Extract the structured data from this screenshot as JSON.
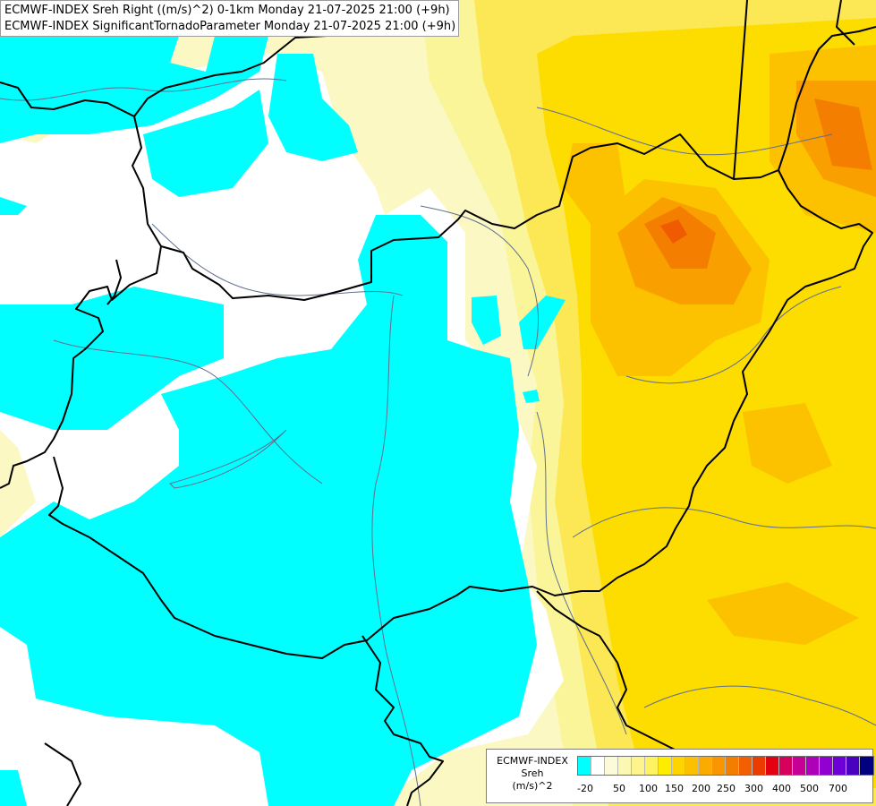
{
  "header": {
    "line1": "ECMWF-INDEX Sreh Right ((m/s)^2) 0-1km Monday 21-07-2025 21:00 (+9h)",
    "line2": "ECMWF-INDEX SignificantTornadoParameter Monday 21-07-2025 21:00 (+9h)"
  },
  "legend": {
    "title_line1": "ECMWF-INDEX",
    "title_line2": "Sreh",
    "title_line3": "(m/s)^2",
    "colors": [
      "#00ffff",
      "#ffffff",
      "#fdfbd7",
      "#fcf8b3",
      "#fdf58c",
      "#fef262",
      "#ffed00",
      "#fdd400",
      "#fcc000",
      "#fbab00",
      "#f89500",
      "#f47d00",
      "#f15f00",
      "#ea3b00",
      "#e30010",
      "#d6005c",
      "#c60094",
      "#ad00b8",
      "#8f00d1",
      "#6d00d6",
      "#4a00bf",
      "#000080"
    ],
    "ticks": [
      "-20",
      "50",
      "100",
      "150",
      "200",
      "250",
      "300",
      "400",
      "500",
      "700"
    ]
  },
  "map": {
    "field_colors": {
      "negative": "#00ffff",
      "zero": "#ffffff",
      "pale": "#fbf8c4",
      "light": "#fbf59a",
      "mid": "#fce854",
      "yellow": "#fddc00",
      "amber": "#fcc200",
      "orange": "#f9a000",
      "deep_orange": "#f47e00",
      "red_orange": "#f05a00"
    },
    "border_color": "#000000",
    "river_color": "#5f6f8f"
  }
}
